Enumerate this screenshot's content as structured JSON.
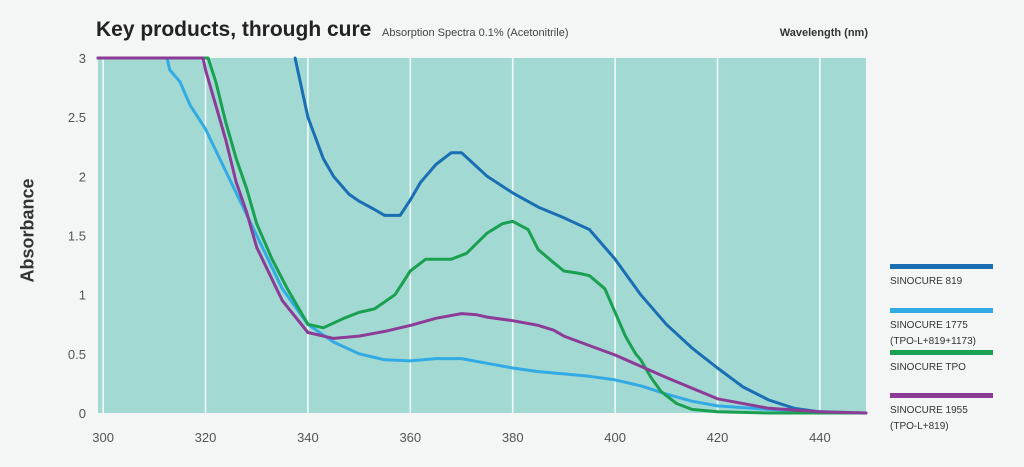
{
  "chart_data": {
    "type": "line",
    "title": "Key products, through cure",
    "subtitle": "Absorption Spectra 0.1% (Acetonitrile)",
    "xlabel": "Wavelength (nm)",
    "ylabel": "Absorbance",
    "xlim": [
      299,
      449
    ],
    "ylim": [
      0,
      3
    ],
    "x_ticks": [
      "300",
      "320",
      "340",
      "360",
      "380",
      "400",
      "420",
      "440"
    ],
    "y_ticks": [
      "0",
      "0.5",
      "1",
      "1.5",
      "2",
      "2.5",
      "3"
    ],
    "grid": "vertical",
    "legend_position": "right",
    "background_color": "#a3d9d3",
    "series": [
      {
        "name": "SINOCURE 819",
        "color": "#1a6fb4",
        "x": [
          337.5,
          340,
          343,
          345,
          348,
          350,
          353,
          355,
          358,
          360,
          362,
          365,
          368,
          370,
          372,
          375,
          380,
          385,
          390,
          395,
          400,
          405,
          410,
          415,
          420,
          425,
          430,
          435,
          440,
          445,
          449
        ],
        "y": [
          3.0,
          2.5,
          2.15,
          2.0,
          1.85,
          1.79,
          1.72,
          1.67,
          1.67,
          1.8,
          1.95,
          2.1,
          2.2,
          2.2,
          2.12,
          2.0,
          1.86,
          1.74,
          1.65,
          1.55,
          1.3,
          1.0,
          0.75,
          0.55,
          0.38,
          0.22,
          0.11,
          0.04,
          0.01,
          0.0,
          0.0
        ]
      },
      {
        "name": "SINOCURE 1775",
        "name2": "(TPO-L+819+1173)",
        "color": "#32aae4",
        "x": [
          299,
          312.5,
          313,
          315,
          317,
          320,
          325,
          330,
          335,
          340,
          345,
          350,
          355,
          360,
          365,
          370,
          375,
          380,
          385,
          390,
          395,
          400,
          405,
          410,
          415,
          420,
          430,
          440,
          449
        ],
        "y": [
          3.0,
          3.0,
          2.9,
          2.8,
          2.6,
          2.4,
          1.95,
          1.5,
          1.05,
          0.75,
          0.6,
          0.5,
          0.45,
          0.44,
          0.46,
          0.46,
          0.42,
          0.38,
          0.35,
          0.33,
          0.31,
          0.28,
          0.23,
          0.16,
          0.1,
          0.06,
          0.03,
          0.01,
          0.0
        ]
      },
      {
        "name": "SINOCURE TPO",
        "color": "#19a050",
        "x": [
          299,
          320.5,
          322,
          324,
          326,
          328,
          330,
          333,
          336,
          340,
          343,
          347,
          350,
          353,
          357,
          360,
          363,
          365,
          368,
          371,
          375,
          378,
          380,
          383,
          385,
          388,
          390,
          393,
          395,
          398,
          400,
          402,
          404,
          405,
          407,
          409,
          412,
          415,
          420,
          430,
          440,
          449
        ],
        "y": [
          3.0,
          3.0,
          2.8,
          2.45,
          2.15,
          1.9,
          1.6,
          1.3,
          1.05,
          0.75,
          0.72,
          0.8,
          0.85,
          0.88,
          1.0,
          1.2,
          1.3,
          1.3,
          1.3,
          1.35,
          1.52,
          1.6,
          1.62,
          1.55,
          1.38,
          1.27,
          1.2,
          1.18,
          1.16,
          1.05,
          0.85,
          0.65,
          0.5,
          0.45,
          0.3,
          0.18,
          0.08,
          0.03,
          0.01,
          0.0,
          0.0,
          0.0
        ]
      },
      {
        "name": "SINOCURE 1955",
        "name2": "(TPO-L+819)",
        "color": "#8c3c96",
        "x": [
          299,
          319.5,
          320,
          322,
          324,
          326,
          328,
          330,
          335,
          340,
          345,
          350,
          355,
          360,
          365,
          370,
          373,
          375,
          380,
          385,
          388,
          390,
          395,
          400,
          410,
          420,
          430,
          440,
          449
        ],
        "y": [
          3.0,
          3.0,
          2.9,
          2.6,
          2.3,
          1.95,
          1.7,
          1.4,
          0.95,
          0.68,
          0.63,
          0.65,
          0.69,
          0.74,
          0.8,
          0.84,
          0.83,
          0.81,
          0.78,
          0.74,
          0.7,
          0.65,
          0.57,
          0.49,
          0.3,
          0.12,
          0.04,
          0.01,
          0.0
        ]
      }
    ]
  }
}
